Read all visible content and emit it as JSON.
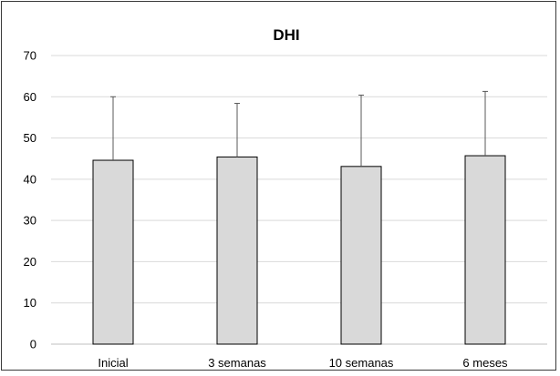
{
  "chart_data": {
    "type": "bar",
    "title": "DHI",
    "xlabel": "",
    "ylabel": "",
    "categories": [
      "Inicial",
      "3 semanas",
      "10 semanas",
      "6 meses"
    ],
    "values": [
      44.6,
      45.4,
      43.1,
      45.7
    ],
    "error_upper": [
      15.4,
      13.0,
      17.3,
      15.6
    ],
    "ylim": [
      0,
      70
    ],
    "yticks": [
      0,
      10,
      20,
      30,
      40,
      50,
      60,
      70
    ],
    "grid": true,
    "legend": "none",
    "colors": {
      "bar_fill": "#d9d9d9",
      "bar_stroke": "#000000",
      "grid": "#d9d9d9",
      "axis": "#bfbfbf",
      "error_bar": "#595959"
    }
  }
}
